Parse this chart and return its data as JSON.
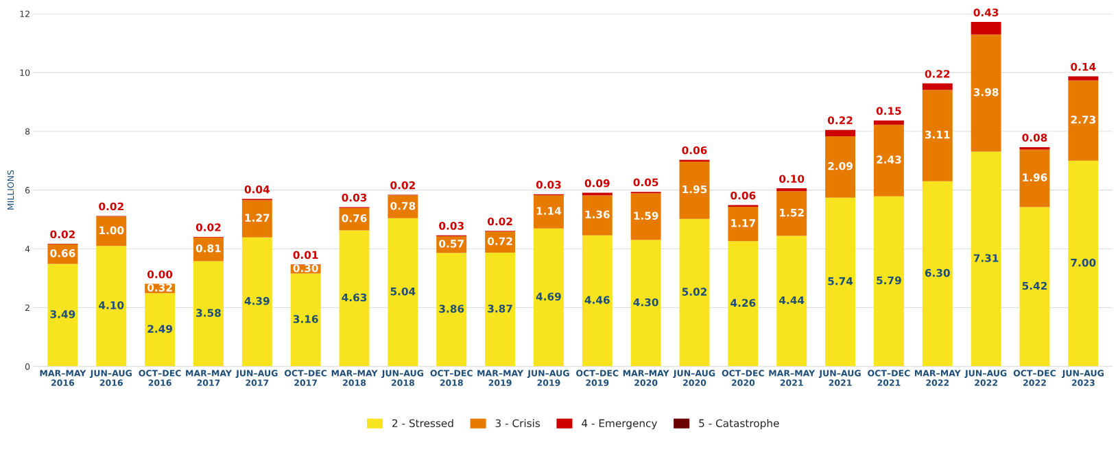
{
  "chart_data": {
    "type": "bar",
    "stacked": true,
    "ylabel": "MILLIONS",
    "categories": [
      "MAR–MAY\n2016",
      "JUN–AUG\n2016",
      "OCT–DEC\n2016",
      "MAR–MAY\n2017",
      "JUN–AUG\n2017",
      "OCT–DEC\n2017",
      "MAR–MAY\n2018",
      "JUN–AUG\n2018",
      "OCT–DEC\n2018",
      "MAR–MAY\n2019",
      "JUN–AUG\n2019",
      "OCT–DEC\n2019",
      "MAR–MAY\n2020",
      "JUN–AUG\n2020",
      "OCT–DEC\n2020",
      "MAR–MAY\n2021",
      "JUN–AUG\n2021",
      "OCT–DEC\n2021",
      "MAR–MAY\n2022",
      "JUN–AUG\n2022",
      "OCT–DEC\n2022",
      "JUN–AUG\n2023"
    ],
    "series": [
      {
        "name": "2 - Stressed",
        "color": "#f7e31e",
        "values": [
          3.49,
          4.1,
          2.49,
          3.58,
          4.39,
          3.16,
          4.63,
          5.04,
          3.86,
          3.87,
          4.69,
          4.46,
          4.3,
          5.02,
          4.26,
          4.44,
          5.74,
          5.79,
          6.3,
          7.31,
          5.42,
          7.0
        ],
        "value_labels": [
          "3.49",
          "4.10",
          "2.49",
          "3.58",
          "4.39",
          "3.16",
          "4.63",
          "5.04",
          "3.86",
          "3.87",
          "4.69",
          "4.46",
          "4.30",
          "5.02",
          "4.26",
          "4.44",
          "5.74",
          "5.79",
          "6.30",
          "7.31",
          "5.42",
          "7.00"
        ]
      },
      {
        "name": "3 - Crisis",
        "color": "#e67b00",
        "values": [
          0.66,
          1.0,
          0.32,
          0.81,
          1.27,
          0.3,
          0.76,
          0.78,
          0.57,
          0.72,
          1.14,
          1.36,
          1.59,
          1.95,
          1.17,
          1.52,
          2.09,
          2.43,
          3.11,
          3.98,
          1.96,
          2.73
        ],
        "value_labels": [
          "0.66",
          "1.00",
          "0.32",
          "0.81",
          "1.27",
          "0.30",
          "0.76",
          "0.78",
          "0.57",
          "0.72",
          "1.14",
          "1.36",
          "1.59",
          "1.95",
          "1.17",
          "1.52",
          "2.09",
          "2.43",
          "3.11",
          "3.98",
          "1.96",
          "2.73"
        ]
      },
      {
        "name": "4 - Emergency",
        "color": "#cc0000",
        "values": [
          0.02,
          0.02,
          0.0,
          0.02,
          0.04,
          0.01,
          0.03,
          0.02,
          0.03,
          0.02,
          0.03,
          0.09,
          0.05,
          0.06,
          0.06,
          0.1,
          0.22,
          0.15,
          0.22,
          0.43,
          0.08,
          0.14
        ],
        "value_labels": [
          "0.02",
          "0.02",
          "0.00",
          "0.02",
          "0.04",
          "0.01",
          "0.03",
          "0.02",
          "0.03",
          "0.02",
          "0.03",
          "0.09",
          "0.05",
          "0.06",
          "0.06",
          "0.10",
          "0.22",
          "0.15",
          "0.22",
          "0.43",
          "0.08",
          "0.14"
        ]
      },
      {
        "name": "5 - Catastrophe",
        "color": "#6b0000",
        "values": [
          null,
          null,
          null,
          null,
          null,
          null,
          null,
          null,
          null,
          null,
          null,
          null,
          null,
          null,
          null,
          null,
          null,
          null,
          null,
          null,
          null,
          null
        ]
      }
    ],
    "ylim": [
      0,
      12
    ],
    "yticks": [
      0,
      2,
      4,
      6,
      8,
      10,
      12
    ],
    "grid": "y",
    "legend": "bottom"
  }
}
